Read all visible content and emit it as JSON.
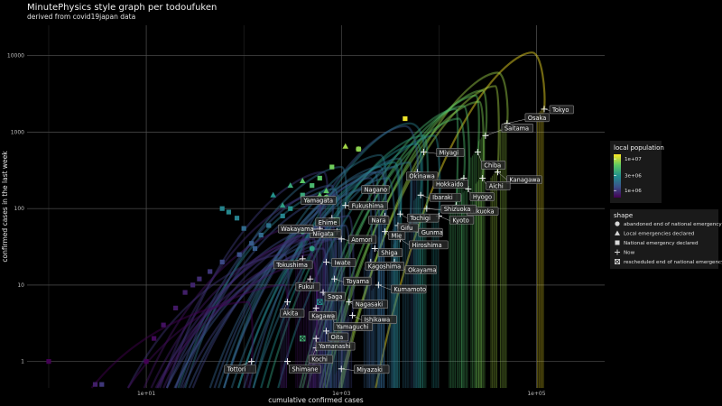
{
  "chart_data": {
    "type": "scatter",
    "title": "MinutePhysics style graph per todoufuken",
    "subtitle": "derived from covid19japan data",
    "xlabel": "cumulative confirmed cases",
    "ylabel": "confirmed cases in the last week",
    "x_scale": "log",
    "y_scale": "log",
    "xlim": [
      0.6,
      500000
    ],
    "ylim": [
      0.45,
      25000
    ],
    "x_ticks": [
      {
        "value": 10,
        "label": "1e+01"
      },
      {
        "value": 1000,
        "label": "1e+03"
      },
      {
        "value": 100000,
        "label": "1e+05"
      }
    ],
    "y_ticks": [
      {
        "value": 1,
        "label": "1"
      },
      {
        "value": 10,
        "label": "10"
      },
      {
        "value": 100,
        "label": "100"
      },
      {
        "value": 1000,
        "label": "1000"
      },
      {
        "value": 10000,
        "label": "10000"
      }
    ],
    "grid": true,
    "color_legend": {
      "title": "local population",
      "placement": "right",
      "scale": "log",
      "range": [
        600000,
        14000000
      ],
      "entries": [
        {
          "value": 10000000,
          "label": "1e+07"
        },
        {
          "value": 3000000,
          "label": "3e+06"
        },
        {
          "value": 1000000,
          "label": "1e+06"
        }
      ],
      "colors": [
        "#440154",
        "#3b528b",
        "#21908d",
        "#5dc962",
        "#fde725"
      ]
    },
    "shape_legend": {
      "title": "shape",
      "placement": "right",
      "entries": [
        {
          "shape": "circle",
          "label": "abandoned end of national emergency"
        },
        {
          "shape": "triangle",
          "label": "Local emergencies declared"
        },
        {
          "shape": "square",
          "label": "National emergency declared"
        },
        {
          "shape": "plus",
          "label": "Now"
        },
        {
          "shape": "boxcross",
          "label": "rescheduled end of national emergency"
        }
      ]
    },
    "prefectures": [
      {
        "name": "Tokyo",
        "pop": 13900000,
        "x": 120000,
        "y": 2000,
        "peak_x": 90000,
        "peak_y": 11000,
        "label_dx": 8,
        "label_dy": 2
      },
      {
        "name": "Osaka",
        "pop": 8800000,
        "x": 50000,
        "y": 1300,
        "peak_x": 40000,
        "peak_y": 6000,
        "label_dx": 22,
        "label_dy": -5
      },
      {
        "name": "Saitama",
        "pop": 7300000,
        "x": 30000,
        "y": 900,
        "peak_x": 28000,
        "peak_y": 3500,
        "label_dx": 20,
        "label_dy": -7
      },
      {
        "name": "Kanagawa",
        "pop": 9200000,
        "x": 40000,
        "y": 300,
        "peak_x": 38000,
        "peak_y": 4000,
        "label_dx": 12,
        "label_dy": 10
      },
      {
        "name": "Chiba",
        "pop": 6300000,
        "x": 25000,
        "y": 550,
        "peak_x": 24000,
        "peak_y": 3000,
        "label_dx": 6,
        "label_dy": 16
      },
      {
        "name": "Aichi",
        "pop": 7500000,
        "x": 28000,
        "y": 250,
        "peak_x": 26000,
        "peak_y": 2500,
        "label_dx": 6,
        "label_dy": 10
      },
      {
        "name": "Hyogo",
        "pop": 5500000,
        "x": 20000,
        "y": 180,
        "peak_x": 18000,
        "peak_y": 2200,
        "label_dx": 4,
        "label_dy": 10
      },
      {
        "name": "Fukuoka",
        "pop": 5100000,
        "x": 15000,
        "y": 110,
        "peak_x": 15000,
        "peak_y": 2000,
        "label_dx": 14,
        "label_dy": 8
      },
      {
        "name": "Hokkaido",
        "pop": 5200000,
        "x": 18000,
        "y": 250,
        "peak_x": 16000,
        "peak_y": 1500,
        "label_dx": -32,
        "label_dy": 8
      },
      {
        "name": "Miyagi",
        "pop": 2300000,
        "x": 7000,
        "y": 550,
        "peak_x": 5000,
        "peak_y": 1300,
        "label_dx": 16,
        "label_dy": 2
      },
      {
        "name": "Okinawa",
        "pop": 1450000,
        "x": 6000,
        "y": 300,
        "peak_x": 4500,
        "peak_y": 1200,
        "label_dx": -10,
        "label_dy": 6
      },
      {
        "name": "Ibaraki",
        "pop": 2860000,
        "x": 6500,
        "y": 150,
        "peak_x": 6000,
        "peak_y": 700,
        "label_dx": 12,
        "label_dy": 4
      },
      {
        "name": "Shizuoka",
        "pop": 3630000,
        "x": 7500,
        "y": 100,
        "peak_x": 7000,
        "peak_y": 900,
        "label_dx": 18,
        "label_dy": 2
      },
      {
        "name": "Kyoto",
        "pop": 2580000,
        "x": 10000,
        "y": 80,
        "peak_x": 9000,
        "peak_y": 900,
        "label_dx": 14,
        "label_dy": 6
      },
      {
        "name": "Nagano",
        "pop": 2050000,
        "x": 2800,
        "y": 180,
        "peak_x": 2500,
        "peak_y": 500,
        "label_dx": -24,
        "label_dy": 2
      },
      {
        "name": "Tochigi",
        "pop": 1930000,
        "x": 4000,
        "y": 85,
        "peak_x": 4000,
        "peak_y": 450,
        "label_dx": 10,
        "label_dy": 6
      },
      {
        "name": "Gunma",
        "pop": 1940000,
        "x": 5000,
        "y": 55,
        "peak_x": 5000,
        "peak_y": 400,
        "label_dx": 12,
        "label_dy": 6
      },
      {
        "name": "Gifu",
        "pop": 1990000,
        "x": 3800,
        "y": 60,
        "peak_x": 3500,
        "peak_y": 350,
        "label_dx": 2,
        "label_dy": 4
      },
      {
        "name": "Nara",
        "pop": 1330000,
        "x": 2800,
        "y": 80,
        "peak_x": 2500,
        "peak_y": 300,
        "label_dx": -16,
        "label_dy": 6
      },
      {
        "name": "Mie",
        "pop": 1780000,
        "x": 2800,
        "y": 50,
        "peak_x": 2500,
        "peak_y": 350,
        "label_dx": 6,
        "label_dy": 6
      },
      {
        "name": "Hiroshima",
        "pop": 2800000,
        "x": 4000,
        "y": 40,
        "peak_x": 3500,
        "peak_y": 400,
        "label_dx": 12,
        "label_dy": 8
      },
      {
        "name": "Shiga",
        "pop": 1410000,
        "x": 2200,
        "y": 30,
        "peak_x": 2000,
        "peak_y": 250,
        "label_dx": 6,
        "label_dy": 6
      },
      {
        "name": "Okayama",
        "pop": 1890000,
        "x": 3500,
        "y": 20,
        "peak_x": 3000,
        "peak_y": 250,
        "label_dx": 14,
        "label_dy": 10
      },
      {
        "name": "Kagoshima",
        "pop": 1600000,
        "x": 2000,
        "y": 20,
        "peak_x": 1800,
        "peak_y": 180,
        "label_dx": -4,
        "label_dy": 6
      },
      {
        "name": "Kumamoto",
        "pop": 1750000,
        "x": 2400,
        "y": 10,
        "peak_x": 2200,
        "peak_y": 300,
        "label_dx": 16,
        "label_dy": 6
      },
      {
        "name": "Fukushima",
        "pop": 1830000,
        "x": 1100,
        "y": 110,
        "peak_x": 1000,
        "peak_y": 350,
        "label_dx": 6,
        "label_dy": 2
      },
      {
        "name": "Ehime",
        "pop": 1340000,
        "x": 800,
        "y": 75,
        "peak_x": 800,
        "peak_y": 200,
        "label_dx": -16,
        "label_dy": 6
      },
      {
        "name": "Yamagata",
        "pop": 1060000,
        "x": 700,
        "y": 130,
        "peak_x": 650,
        "peak_y": 300,
        "label_dx": -26,
        "label_dy": 2
      },
      {
        "name": "Niigata",
        "pop": 2200000,
        "x": 900,
        "y": 50,
        "peak_x": 850,
        "peak_y": 180,
        "label_dx": -28,
        "label_dy": 4
      },
      {
        "name": "Wakayama",
        "pop": 920000,
        "x": 600,
        "y": 55,
        "peak_x": 550,
        "peak_y": 150,
        "label_dx": -44,
        "label_dy": 2
      },
      {
        "name": "Aomori",
        "pop": 1240000,
        "x": 1000,
        "y": 40,
        "peak_x": 900,
        "peak_y": 150,
        "label_dx": 10,
        "label_dy": 2
      },
      {
        "name": "Tokushima",
        "pop": 720000,
        "x": 400,
        "y": 22,
        "peak_x": 380,
        "peak_y": 60,
        "label_dx": -30,
        "label_dy": 8
      },
      {
        "name": "Iwate",
        "pop": 1210000,
        "x": 700,
        "y": 20,
        "peak_x": 650,
        "peak_y": 60,
        "label_dx": 8,
        "label_dy": 2
      },
      {
        "name": "Fukui",
        "pop": 770000,
        "x": 480,
        "y": 12,
        "peak_x": 450,
        "peak_y": 40,
        "label_dx": -14,
        "label_dy": 10
      },
      {
        "name": "Toyama",
        "pop": 1040000,
        "x": 850,
        "y": 12,
        "peak_x": 800,
        "peak_y": 60,
        "label_dx": 12,
        "label_dy": 4
      },
      {
        "name": "Saga",
        "pop": 810000,
        "x": 650,
        "y": 8,
        "peak_x": 600,
        "peak_y": 50,
        "label_dx": 4,
        "label_dy": 6
      },
      {
        "name": "Nagasaki",
        "pop": 1330000,
        "x": 1200,
        "y": 6,
        "peak_x": 1100,
        "peak_y": 60,
        "label_dx": 6,
        "label_dy": 4
      },
      {
        "name": "Ishikawa",
        "pop": 1140000,
        "x": 1300,
        "y": 4,
        "peak_x": 1200,
        "peak_y": 80,
        "label_dx": 12,
        "label_dy": 6
      },
      {
        "name": "Akita",
        "pop": 970000,
        "x": 280,
        "y": 6,
        "peak_x": 260,
        "peak_y": 25,
        "label_dx": -6,
        "label_dy": 14
      },
      {
        "name": "Kagawa",
        "pop": 960000,
        "x": 550,
        "y": 5,
        "peak_x": 520,
        "peak_y": 40,
        "label_dx": -6,
        "label_dy": 10
      },
      {
        "name": "Yamaguchi",
        "pop": 1360000,
        "x": 800,
        "y": 4,
        "peak_x": 780,
        "peak_y": 40,
        "label_dx": 4,
        "label_dy": 14
      },
      {
        "name": "Oita",
        "pop": 1140000,
        "x": 700,
        "y": 2.5,
        "peak_x": 650,
        "peak_y": 30,
        "label_dx": 4,
        "label_dy": 8
      },
      {
        "name": "Yamanashi",
        "pop": 820000,
        "x": 550,
        "y": 2,
        "peak_x": 500,
        "peak_y": 25,
        "label_dx": 2,
        "label_dy": 10
      },
      {
        "name": "Kochi",
        "pop": 700000,
        "x": 550,
        "y": 1.5,
        "peak_x": 520,
        "peak_y": 20,
        "label_dx": -6,
        "label_dy": 14
      },
      {
        "name": "Miyazaki",
        "pop": 1080000,
        "x": 1000,
        "y": 0.8,
        "peak_x": 950,
        "peak_y": 40,
        "label_dx": 16,
        "label_dy": 2
      },
      {
        "name": "Tottori",
        "pop": 560000,
        "x": 120,
        "y": 1,
        "peak_x": 110,
        "peak_y": 6,
        "label_dx": -28,
        "label_dy": 10
      },
      {
        "name": "Shimane",
        "pop": 670000,
        "x": 280,
        "y": 1,
        "peak_x": 260,
        "peak_y": 10,
        "label_dx": 4,
        "label_dy": 10
      }
    ],
    "event_points": [
      {
        "shape": "triangle",
        "x": 1100,
        "y": 650,
        "pop": 9000000
      },
      {
        "shape": "triangle",
        "x": 400,
        "y": 230,
        "pop": 6000000
      },
      {
        "shape": "triangle",
        "x": 300,
        "y": 200,
        "pop": 4000000
      },
      {
        "shape": "triangle",
        "x": 200,
        "y": 150,
        "pop": 3000000
      },
      {
        "shape": "triangle",
        "x": 250,
        "y": 110,
        "pop": 3500000
      },
      {
        "shape": "triangle",
        "x": 450,
        "y": 130,
        "pop": 5000000
      },
      {
        "shape": "triangle",
        "x": 600,
        "y": 150,
        "pop": 5500000
      },
      {
        "shape": "triangle",
        "x": 700,
        "y": 170,
        "pop": 6000000
      },
      {
        "shape": "square",
        "x": 4500,
        "y": 1500,
        "pop": 13000000
      },
      {
        "shape": "square",
        "x": 1500,
        "y": 600,
        "pop": 9000000
      },
      {
        "shape": "square",
        "x": 800,
        "y": 350,
        "pop": 7000000
      },
      {
        "shape": "square",
        "x": 600,
        "y": 250,
        "pop": 6000000
      },
      {
        "shape": "square",
        "x": 500,
        "y": 200,
        "pop": 5000000
      },
      {
        "shape": "square",
        "x": 400,
        "y": 150,
        "pop": 4000000
      },
      {
        "shape": "square",
        "x": 300,
        "y": 100,
        "pop": 3000000
      },
      {
        "shape": "square",
        "x": 250,
        "y": 80,
        "pop": 2500000
      },
      {
        "shape": "square",
        "x": 180,
        "y": 60,
        "pop": 2000000
      },
      {
        "shape": "square",
        "x": 150,
        "y": 45,
        "pop": 1800000
      },
      {
        "shape": "square",
        "x": 120,
        "y": 35,
        "pop": 1500000
      },
      {
        "shape": "square",
        "x": 90,
        "y": 25,
        "pop": 1300000
      },
      {
        "shape": "square",
        "x": 60,
        "y": 20,
        "pop": 1200000
      },
      {
        "shape": "square",
        "x": 45,
        "y": 15,
        "pop": 1000000
      },
      {
        "shape": "square",
        "x": 35,
        "y": 12,
        "pop": 900000
      },
      {
        "shape": "square",
        "x": 30,
        "y": 10,
        "pop": 850000
      },
      {
        "shape": "square",
        "x": 25,
        "y": 8,
        "pop": 800000
      },
      {
        "shape": "square",
        "x": 20,
        "y": 5,
        "pop": 750000
      },
      {
        "shape": "square",
        "x": 15,
        "y": 3,
        "pop": 700000
      },
      {
        "shape": "square",
        "x": 12,
        "y": 2,
        "pop": 650000
      },
      {
        "shape": "square",
        "x": 10,
        "y": 1,
        "pop": 600000
      },
      {
        "shape": "square",
        "x": 1,
        "y": 1,
        "pop": 600000
      },
      {
        "shape": "square",
        "x": 3,
        "y": 0.5,
        "pop": 800000
      },
      {
        "shape": "square",
        "x": 3.5,
        "y": 0.5,
        "pop": 1000000
      },
      {
        "shape": "square",
        "x": 60,
        "y": 100,
        "pop": 2500000
      },
      {
        "shape": "square",
        "x": 70,
        "y": 90,
        "pop": 2600000
      },
      {
        "shape": "square",
        "x": 85,
        "y": 75,
        "pop": 2400000
      },
      {
        "shape": "square",
        "x": 100,
        "y": 55,
        "pop": 1800000
      },
      {
        "shape": "square",
        "x": 130,
        "y": 30,
        "pop": 1500000
      },
      {
        "shape": "circle",
        "x": 700,
        "y": 140,
        "pop": 6500000
      },
      {
        "shape": "circle",
        "x": 1500,
        "y": 600,
        "pop": 8000000
      },
      {
        "shape": "circle",
        "x": 400,
        "y": 50,
        "pop": 4000000
      },
      {
        "shape": "circle",
        "x": 500,
        "y": 30,
        "pop": 3500000
      },
      {
        "shape": "boxcross",
        "x": 400,
        "y": 2,
        "pop": 4500000
      },
      {
        "shape": "boxcross",
        "x": 600,
        "y": 6,
        "pop": 3000000
      },
      {
        "shape": "boxcross",
        "x": 800,
        "y": 45,
        "pop": 5000000
      },
      {
        "shape": "boxcross",
        "x": 900,
        "y": 70,
        "pop": 5500000
      }
    ]
  }
}
